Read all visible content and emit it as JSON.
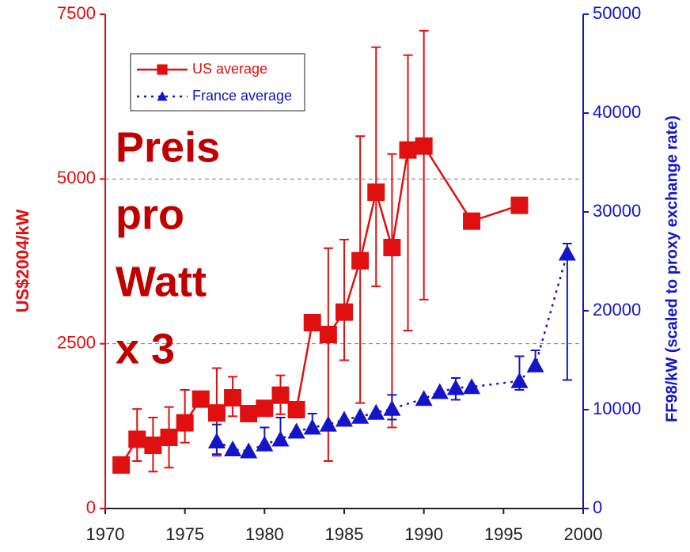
{
  "chart_data": {
    "type": "line",
    "y_label": "US$2004/kW",
    "y2_label": "FF98/kW (scaled to proxy exchange rate)",
    "annotation": [
      "Preis",
      "pro",
      "Watt",
      "x 3"
    ],
    "xlim": [
      1970,
      2000
    ],
    "xticks": [
      1970,
      1975,
      1980,
      1985,
      1990,
      1995,
      2000
    ],
    "ylim": [
      0,
      7500
    ],
    "yticks": [
      0,
      2500,
      5000,
      7500
    ],
    "y2lim": [
      0,
      50000
    ],
    "y2ticks": [
      0,
      10000,
      20000,
      30000,
      40000,
      50000
    ],
    "grid": "dashed",
    "legend": "upper left",
    "series": [
      {
        "name": "US average",
        "color": "#e01010",
        "axis": "y",
        "marker": "square",
        "linestyle": "solid",
        "x": [
          1971,
          1972,
          1973,
          1974,
          1975,
          1976,
          1977,
          1978,
          1979,
          1980,
          1981,
          1982,
          1983,
          1984,
          1985,
          1986,
          1987,
          1988,
          1989,
          1990,
          1993,
          1996
        ],
        "values": [
          660,
          1050,
          960,
          1080,
          1300,
          1660,
          1450,
          1680,
          1440,
          1520,
          1720,
          1500,
          2820,
          2640,
          2980,
          3760,
          4800,
          3960,
          5440,
          5500,
          4360,
          4600
        ],
        "error_plus": [
          null,
          460,
          420,
          460,
          500,
          50,
          680,
          320,
          120,
          80,
          300,
          50,
          50,
          1310,
          1100,
          1890,
          2200,
          1420,
          1440,
          1750,
          null,
          null
        ],
        "error_minus": [
          null,
          330,
          400,
          460,
          300,
          50,
          650,
          280,
          100,
          70,
          290,
          50,
          60,
          1920,
          730,
          2160,
          1430,
          2730,
          2740,
          2330,
          null,
          null
        ]
      },
      {
        "name": "France average",
        "color": "#1414c8",
        "axis": "y2",
        "marker": "triangle",
        "linestyle": "dotted",
        "x": [
          1977,
          1978,
          1979,
          1980,
          1981,
          1982,
          1983,
          1984,
          1985,
          1986,
          1987,
          1988,
          1990,
          1991,
          1992,
          1993,
          1996,
          1997,
          1999
        ],
        "values": [
          6800,
          6000,
          5800,
          6500,
          7000,
          7800,
          8200,
          8500,
          9000,
          9300,
          9700,
          10100,
          11100,
          11800,
          12200,
          12300,
          12900,
          14500,
          25800
        ],
        "error_plus": [
          1700,
          null,
          null,
          1700,
          2200,
          null,
          1400,
          null,
          null,
          null,
          null,
          1400,
          null,
          null,
          1000,
          null,
          2500,
          1500,
          1000
        ],
        "error_minus": [
          1300,
          null,
          null,
          null,
          null,
          null,
          null,
          null,
          null,
          null,
          null,
          1100,
          null,
          null,
          1200,
          null,
          900,
          null,
          12800
        ]
      }
    ]
  }
}
